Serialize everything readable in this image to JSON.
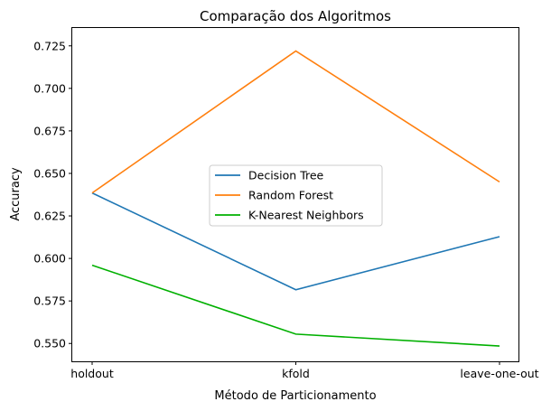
{
  "chart_data": {
    "type": "line",
    "title": "Comparação dos Algoritmos",
    "xlabel": "Método de Particionamento",
    "ylabel": "Accuracy",
    "categories": [
      "holdout",
      "kfold",
      "leave-one-out"
    ],
    "ylim": [
      0.5395,
      0.7355
    ],
    "yticks": [
      0.55,
      0.575,
      0.6,
      0.625,
      0.65,
      0.675,
      0.7,
      0.725
    ],
    "ytick_labels": [
      "0.550",
      "0.575",
      "0.600",
      "0.625",
      "0.650",
      "0.675",
      "0.700",
      "0.725"
    ],
    "grid": false,
    "legend_position": "center",
    "series": [
      {
        "name": "Decision Tree",
        "color": "#1f77b4",
        "values": [
          0.6385,
          0.5816,
          0.6128
        ]
      },
      {
        "name": "Random Forest",
        "color": "#ff7f0e",
        "values": [
          0.6385,
          0.722,
          0.645
        ]
      },
      {
        "name": "K-Nearest Neighbors",
        "color": "#00b000",
        "values": [
          0.596,
          0.5555,
          0.5485
        ]
      }
    ]
  }
}
